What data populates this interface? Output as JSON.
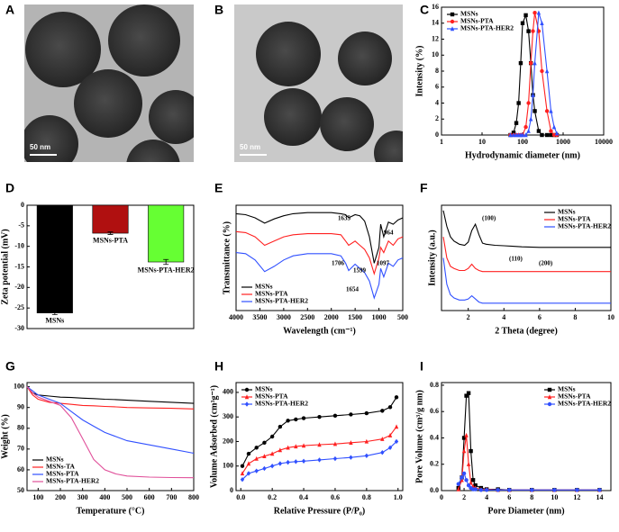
{
  "images": [
    {
      "panel": "A",
      "scale_bar": "50 nm"
    },
    {
      "panel": "B",
      "scale_bar": "50 nm"
    }
  ],
  "chart_data": [
    {
      "panel": "C",
      "type": "line",
      "xlabel": "Hydrodynamic diameter (nm)",
      "ylabel": "Intensity (%)",
      "xscale": "log",
      "xlim": [
        1,
        10000
      ],
      "xticks": [
        1,
        10,
        100,
        1000,
        10000
      ],
      "ylim": [
        0,
        16
      ],
      "yticks": [
        0,
        2,
        4,
        6,
        8,
        10,
        12,
        14,
        16
      ],
      "legend": "upper left",
      "x": [
        50,
        60,
        70,
        80,
        90,
        100,
        120,
        140,
        160,
        180,
        200,
        250,
        300,
        400,
        500,
        600,
        700
      ],
      "series": [
        {
          "name": "MSNs",
          "color": "#000000",
          "marker": "square",
          "values": [
            0,
            0.3,
            1.5,
            4,
            9,
            14,
            15,
            13,
            9,
            5,
            3,
            0.5,
            0,
            0,
            0,
            0,
            0
          ]
        },
        {
          "name": "MSNs-PTA",
          "color": "#ff2020",
          "marker": "circle",
          "values": [
            0,
            0,
            0,
            0,
            0,
            0,
            1,
            4,
            9,
            13,
            15.3,
            13,
            8,
            3,
            0.5,
            0,
            0
          ]
        },
        {
          "name": "MSNs-PTA-HER2",
          "color": "#3050ff",
          "marker": "triangle",
          "values": [
            0,
            0,
            0,
            0,
            0,
            0,
            0,
            0.5,
            2,
            5,
            9,
            15.3,
            14,
            8,
            3,
            1,
            0.2
          ]
        }
      ]
    },
    {
      "panel": "D",
      "type": "bar",
      "ylabel": "Zeta potential (mV)",
      "ylim": [
        -30,
        0
      ],
      "yticks": [
        0,
        -5,
        -10,
        -15,
        -20,
        -25,
        -30
      ],
      "categories": [
        "MSNs",
        "MSNs-PTA",
        "MSNs-PTA-HER2"
      ],
      "values": [
        -26.2,
        -6.8,
        -13.8
      ],
      "errors": [
        0.4,
        0.3,
        0.6
      ],
      "colors": [
        "#000000",
        "#b01010",
        "#66ff33"
      ]
    },
    {
      "panel": "E",
      "type": "line",
      "xlabel": "Wavelength (cm⁻¹)",
      "ylabel": "Transmittance (%)",
      "xlim": [
        4000,
        500
      ],
      "xticks": [
        4000,
        3500,
        3000,
        2500,
        2000,
        1500,
        1000,
        500
      ],
      "ylim": [
        0,
        100
      ],
      "legend": "lower left",
      "annotations": [
        "1635",
        "964",
        "1706",
        "1599",
        "1097",
        "1654"
      ],
      "x": [
        4000,
        3800,
        3600,
        3400,
        3200,
        3000,
        2800,
        2500,
        2000,
        1800,
        1700,
        1635,
        1500,
        1400,
        1300,
        1200,
        1100,
        1000,
        964,
        900,
        800,
        700,
        600,
        500
      ],
      "series": [
        {
          "name": "MSNs",
          "color": "#000000",
          "values": [
            92,
            91,
            88,
            83,
            87,
            90,
            92,
            93,
            93,
            92,
            91,
            88,
            91,
            90,
            85,
            70,
            45,
            60,
            82,
            70,
            84,
            82,
            86,
            88
          ]
        },
        {
          "name": "MSNs-PTA",
          "color": "#ff2020",
          "values": [
            75,
            74,
            70,
            62,
            66,
            70,
            72,
            73,
            73,
            72,
            66,
            62,
            66,
            62,
            58,
            50,
            35,
            50,
            60,
            55,
            66,
            62,
            68,
            70
          ]
        },
        {
          "name": "MSNs-PTA-HER2",
          "color": "#3050ff",
          "values": [
            55,
            54,
            48,
            37,
            42,
            48,
            52,
            54,
            54,
            52,
            45,
            38,
            44,
            40,
            36,
            28,
            12,
            25,
            40,
            32,
            45,
            42,
            48,
            50
          ]
        }
      ]
    },
    {
      "panel": "F",
      "type": "line",
      "xlabel": "2 Theta (degree)",
      "ylabel": "Intensity (a.u.)",
      "xlim": [
        0.5,
        10
      ],
      "xticks": [
        2,
        4,
        6,
        8,
        10
      ],
      "ylim": [
        0,
        100
      ],
      "legend": "upper right",
      "annotations": [
        "(100)",
        "(110)",
        "(200)"
      ],
      "x": [
        0.6,
        0.8,
        1,
        1.2,
        1.5,
        1.8,
        2,
        2.2,
        2.4,
        2.6,
        2.8,
        3,
        3.5,
        4,
        4.5,
        5,
        6,
        7,
        8,
        9,
        10
      ],
      "series": [
        {
          "name": "MSNs",
          "color": "#000000",
          "values": [
            95,
            80,
            70,
            66,
            63,
            62,
            65,
            76,
            82,
            72,
            64,
            63,
            62,
            61.5,
            61,
            60.5,
            60,
            60,
            60,
            60,
            60
          ]
        },
        {
          "name": "MSNs-PTA",
          "color": "#ff2020",
          "values": [
            70,
            50,
            42,
            40,
            38,
            38,
            40,
            44,
            40,
            38,
            37,
            37,
            37,
            37,
            37,
            37,
            37,
            37,
            37,
            37,
            37
          ]
        },
        {
          "name": "MSNs-PTA-HER2",
          "color": "#3050ff",
          "values": [
            50,
            25,
            15,
            12,
            10,
            10,
            11,
            14,
            11,
            8,
            7,
            7,
            7,
            7,
            7,
            7,
            7,
            7,
            7,
            7,
            7
          ]
        }
      ]
    },
    {
      "panel": "G",
      "type": "line",
      "xlabel": "Temperature (°C)",
      "ylabel": "Weight (%)",
      "xlim": [
        50,
        800
      ],
      "xticks": [
        100,
        200,
        300,
        400,
        500,
        600,
        700,
        800
      ],
      "ylim": [
        50,
        102
      ],
      "yticks": [
        50,
        60,
        70,
        80,
        90,
        100
      ],
      "legend": "lower left",
      "x": [
        50,
        75,
        100,
        150,
        200,
        250,
        300,
        350,
        400,
        450,
        500,
        600,
        700,
        800
      ],
      "series": [
        {
          "name": "MSNs",
          "color": "#000000",
          "values": [
            100,
            97,
            96,
            95.5,
            95,
            94.8,
            94.5,
            94.3,
            94,
            93.8,
            93.5,
            93,
            92.5,
            92
          ]
        },
        {
          "name": "MSNs-TA",
          "color": "#ff2020",
          "values": [
            100,
            96,
            94,
            92.5,
            92,
            91.5,
            91,
            90.8,
            90.5,
            90.3,
            90,
            89.8,
            89.6,
            89.3
          ]
        },
        {
          "name": "MSNs-PTA",
          "color": "#3050ff",
          "values": [
            100,
            98,
            96,
            94,
            92,
            88,
            84,
            81,
            78,
            76,
            74,
            72,
            70,
            68
          ]
        },
        {
          "name": "MSNs-PTA-HER2",
          "color": "#e0509a",
          "values": [
            100,
            97,
            95,
            93,
            91,
            85,
            75,
            65,
            60,
            58,
            57,
            56.5,
            56.3,
            56.2
          ]
        }
      ]
    },
    {
      "panel": "H",
      "type": "line",
      "xlabel": "Relative Pressure (P/P₀)",
      "ylabel": "Volume Adsorbed (cm³g⁻¹)",
      "xlim": [
        -0.03,
        1.03
      ],
      "xticks": [
        {
          "value": 0,
          "label": "0.0"
        },
        0.2,
        0.4,
        0.6,
        0.8,
        {
          "value": 1,
          "label": "1.0"
        }
      ],
      "ylim": [
        0,
        440
      ],
      "yticks": [
        0,
        100,
        200,
        300,
        400
      ],
      "legend": "upper left",
      "x": [
        0.01,
        0.05,
        0.1,
        0.15,
        0.2,
        0.25,
        0.3,
        0.35,
        0.4,
        0.5,
        0.6,
        0.7,
        0.8,
        0.9,
        0.95,
        0.99
      ],
      "series": [
        {
          "name": "MSNs",
          "color": "#000000",
          "marker": "circle",
          "values": [
            100,
            150,
            175,
            195,
            220,
            260,
            285,
            290,
            295,
            300,
            305,
            310,
            315,
            325,
            340,
            380
          ]
        },
        {
          "name": "MSNs-PTA",
          "color": "#ff2020",
          "marker": "triangle",
          "values": [
            70,
            110,
            130,
            140,
            150,
            165,
            175,
            180,
            183,
            187,
            190,
            195,
            200,
            210,
            225,
            260
          ]
        },
        {
          "name": "MSNs-PTA-HER2",
          "color": "#3050ff",
          "marker": "diamond",
          "values": [
            45,
            70,
            80,
            90,
            100,
            110,
            115,
            118,
            120,
            125,
            130,
            135,
            142,
            155,
            175,
            200
          ]
        }
      ]
    },
    {
      "panel": "I",
      "type": "line",
      "xlabel": "Pore Diameter (nm)",
      "ylabel": "Pore Volume (cm³/g nm)",
      "xlim": [
        0,
        15
      ],
      "xticks": [
        0,
        2,
        4,
        6,
        8,
        10,
        12,
        14
      ],
      "ylim": [
        0,
        0.82
      ],
      "yticks": [
        {
          "value": 0,
          "label": "0.0"
        },
        0.2,
        0.4,
        0.6,
        0.8
      ],
      "legend": "upper right",
      "x": [
        1.5,
        1.8,
        2,
        2.2,
        2.4,
        2.6,
        2.8,
        3,
        3.5,
        4,
        5,
        6,
        8,
        10,
        12,
        14
      ],
      "series": [
        {
          "name": "MSNs",
          "color": "#000000",
          "marker": "square",
          "values": [
            0.02,
            0.1,
            0.4,
            0.72,
            0.74,
            0.3,
            0.08,
            0.04,
            0.02,
            0.01,
            0.01,
            0.005,
            0.005,
            0.005,
            0.005,
            0.005
          ]
        },
        {
          "name": "MSNs-PTA",
          "color": "#ff2020",
          "marker": "triangle",
          "values": [
            0.01,
            0.08,
            0.3,
            0.42,
            0.2,
            0.06,
            0.03,
            0.02,
            0.01,
            0.01,
            0.005,
            0.005,
            0.005,
            0.005,
            0.005,
            0.005
          ]
        },
        {
          "name": "MSNs-PTA-HER2",
          "color": "#3050ff",
          "marker": "circle",
          "values": [
            0.05,
            0.1,
            0.13,
            0.08,
            0.04,
            0.02,
            0.01,
            0.01,
            0.005,
            0.005,
            0.005,
            0.005,
            0.005,
            0.005,
            0.005,
            0.005
          ]
        }
      ]
    }
  ]
}
